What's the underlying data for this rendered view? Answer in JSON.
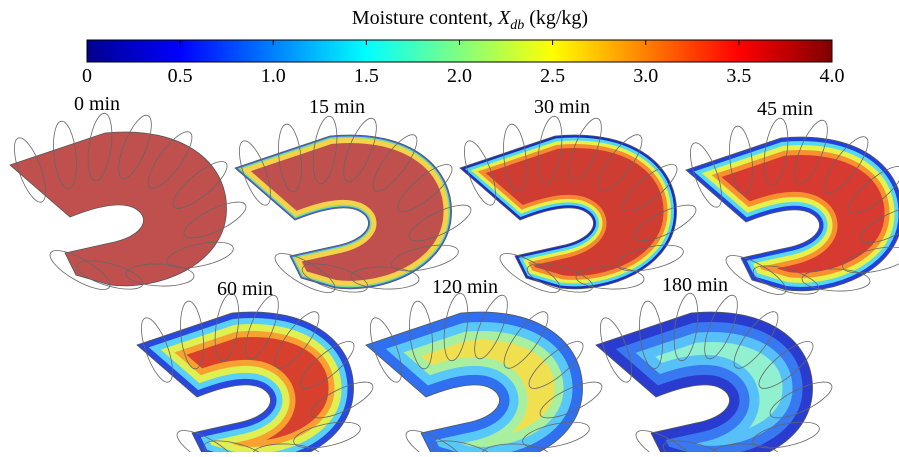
{
  "colorbar": {
    "title": {
      "prefix": "Moisture content, ",
      "symbol": "X",
      "subscript": "db",
      "unit": " (kg/kg)"
    },
    "min": 0,
    "max": 4,
    "ticks": [
      {
        "value": 0,
        "label": "0"
      },
      {
        "value": 0.5,
        "label": "0.5"
      },
      {
        "value": 1,
        "label": "1.0"
      },
      {
        "value": 1.5,
        "label": "1.5"
      },
      {
        "value": 2,
        "label": "2.0"
      },
      {
        "value": 2.5,
        "label": "2.5"
      },
      {
        "value": 3,
        "label": "3.0"
      },
      {
        "value": 3.5,
        "label": "3.5"
      },
      {
        "value": 4,
        "label": "4.0"
      }
    ]
  },
  "panels": [
    {
      "label": "0 min"
    },
    {
      "label": "15 min"
    },
    {
      "label": "30 min"
    },
    {
      "label": "45 min"
    },
    {
      "label": "60 min"
    },
    {
      "label": "120 min"
    },
    {
      "label": "180 min"
    }
  ]
}
